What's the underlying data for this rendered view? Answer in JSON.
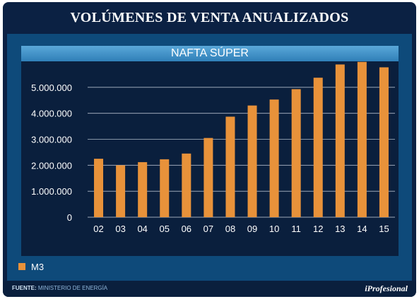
{
  "title": "VOLÚMENES DE VENTA ANUALIZADOS",
  "footer": {
    "source_label": "FUENTE:",
    "source_text": "MINISTERIO DE ENERGÍA",
    "brand": "iProfesional"
  },
  "colors": {
    "bar": "#e8923a",
    "background": "#0b2143",
    "plot": "#0a1f3d",
    "panel": "#0e4a7a",
    "gridline": "#cfd8e3"
  },
  "chart_data": {
    "type": "bar",
    "title": "NAFTA SÚPER",
    "categories": [
      "02",
      "03",
      "04",
      "05",
      "06",
      "07",
      "08",
      "09",
      "10",
      "11",
      "12",
      "13",
      "14",
      "15"
    ],
    "series": [
      {
        "name": "M3",
        "values": [
          2250000,
          2000000,
          2120000,
          2230000,
          2450000,
          3050000,
          3870000,
          4300000,
          4530000,
          4930000,
          5370000,
          5880000,
          5980000,
          5770000
        ]
      }
    ],
    "yticks": [
      0,
      1000000,
      2000000,
      3000000,
      4000000,
      5000000
    ],
    "ytick_labels": [
      "0",
      "1.000.000",
      "2.000.000",
      "3.000.000",
      "4.000.000",
      "5.000.000"
    ],
    "ylim": [
      0,
      6000000
    ],
    "grid": true,
    "legend_position": "bottom-left"
  }
}
